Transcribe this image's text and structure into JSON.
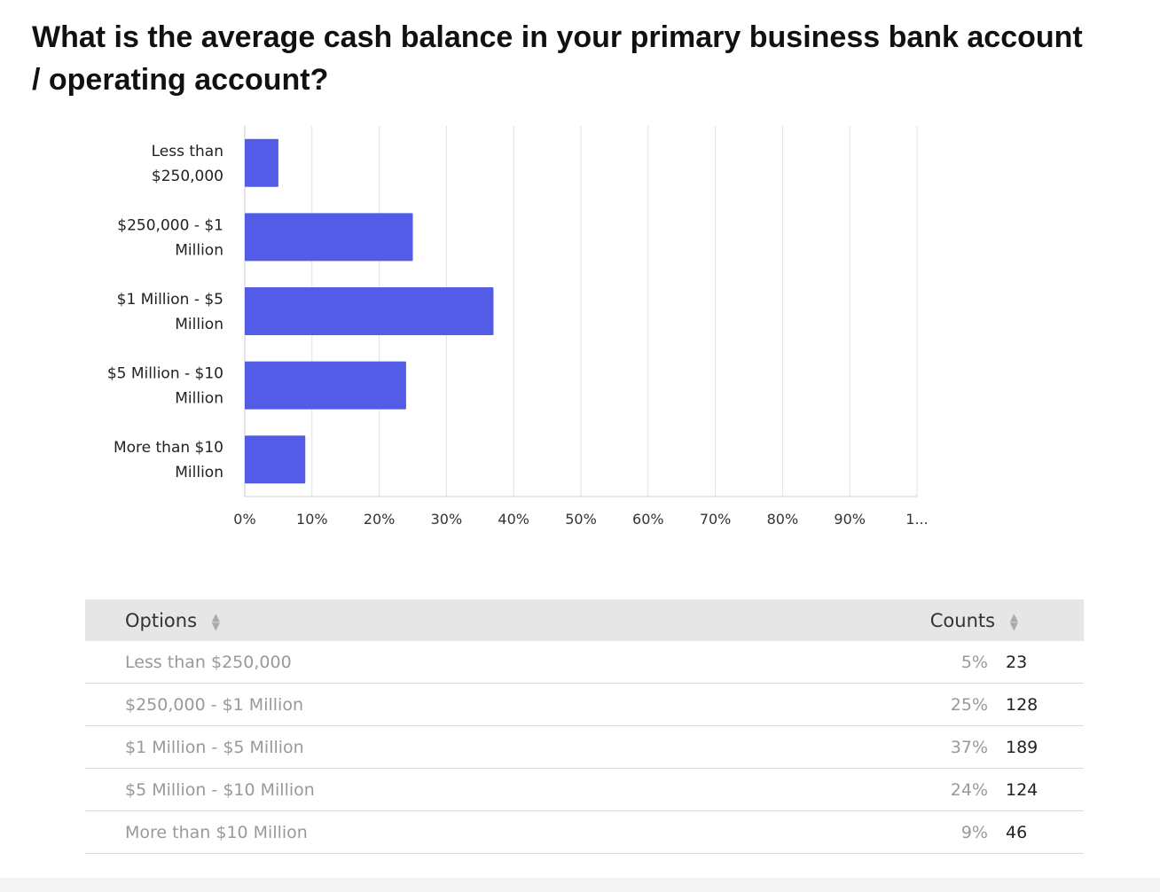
{
  "question": "What is the average cash balance in your primary business bank account / operating account?",
  "chart_data": {
    "type": "bar",
    "orientation": "horizontal",
    "categories": [
      [
        "Less than",
        "$250,000"
      ],
      [
        "$250,000 - $1",
        "Million"
      ],
      [
        "$1 Million - $5",
        "Million"
      ],
      [
        "$5 Million - $10",
        "Million"
      ],
      [
        "More than $10",
        "Million"
      ]
    ],
    "values": [
      5,
      25,
      37,
      24,
      9
    ],
    "x_ticks": [
      "0%",
      "10%",
      "20%",
      "30%",
      "40%",
      "50%",
      "60%",
      "70%",
      "80%",
      "90%",
      "1..."
    ],
    "xlim": [
      0,
      100
    ],
    "grid": true,
    "bar_color": "#525ce6",
    "title": "",
    "xlabel": "",
    "ylabel": ""
  },
  "table": {
    "headers": {
      "options": "Options",
      "counts": "Counts"
    },
    "rows": [
      {
        "option": "Less than $250,000",
        "percent": "5%",
        "count": "23"
      },
      {
        "option": "$250,000 - $1 Million",
        "percent": "25%",
        "count": "128"
      },
      {
        "option": "$1 Million - $5 Million",
        "percent": "37%",
        "count": "189"
      },
      {
        "option": "$5 Million - $10 Million",
        "percent": "24%",
        "count": "124"
      },
      {
        "option": "More than $10 Million",
        "percent": "9%",
        "count": "46"
      }
    ]
  },
  "icons": {
    "sort": "sort-icon"
  },
  "colors": {
    "bar": "#525ce6",
    "header_bg": "#e6e6e6"
  }
}
